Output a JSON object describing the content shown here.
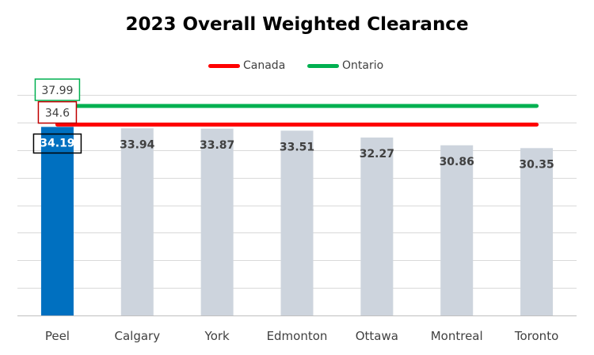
{
  "chart_data": {
    "type": "bar",
    "title": "2023 Overall Weighted Clearance",
    "categories": [
      "Peel",
      "Calgary",
      "York",
      "Edmonton",
      "Ottawa",
      "Montreal",
      "Toronto"
    ],
    "values": [
      34.19,
      33.94,
      33.87,
      33.51,
      32.27,
      30.86,
      30.35
    ],
    "value_labels": [
      "34.19",
      "33.94",
      "33.87",
      "33.51",
      "32.27",
      "30.86",
      "30.35"
    ],
    "bar_colors": [
      "#0070C0",
      "#CDD4DD",
      "#CDD4DD",
      "#CDD4DD",
      "#CDD4DD",
      "#CDD4DD",
      "#CDD4DD"
    ],
    "highlight_category": "Peel",
    "reference_lines": [
      {
        "name": "Canada",
        "value": 34.6,
        "label": "34.6",
        "color": "#FF0000"
      },
      {
        "name": "Ontario",
        "value": 37.99,
        "label": "37.99",
        "color": "#00B050"
      }
    ],
    "legend": {
      "position": "top",
      "entries": [
        "Canada",
        "Ontario"
      ]
    },
    "xlabel": "",
    "ylabel": "",
    "ylim": [
      0,
      40
    ],
    "grid": true
  }
}
